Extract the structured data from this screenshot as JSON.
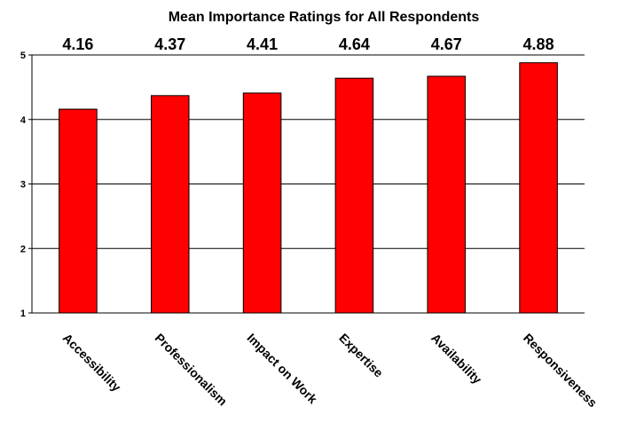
{
  "chart_data": {
    "type": "bar",
    "title": "Mean Importance Ratings for All Respondents",
    "categories": [
      "Accessibility",
      "Professionalism",
      "Impact on Work",
      "Expertise",
      "Availability",
      "Responsiveness"
    ],
    "values": [
      4.16,
      4.37,
      4.41,
      4.64,
      4.67,
      4.88
    ],
    "data_labels": [
      "4.16",
      "4.37",
      "4.41",
      "4.64",
      "4.67",
      "4.88"
    ],
    "ylim": [
      1,
      5
    ],
    "yticks": [
      "1",
      "2",
      "3",
      "4",
      "5"
    ],
    "xlabel": "",
    "ylabel": "",
    "grid": true,
    "legend": "none",
    "colors": {
      "bar": "#FF0000",
      "bar_stroke": "#000000",
      "axis": "#000000",
      "grid": "#000000"
    }
  }
}
